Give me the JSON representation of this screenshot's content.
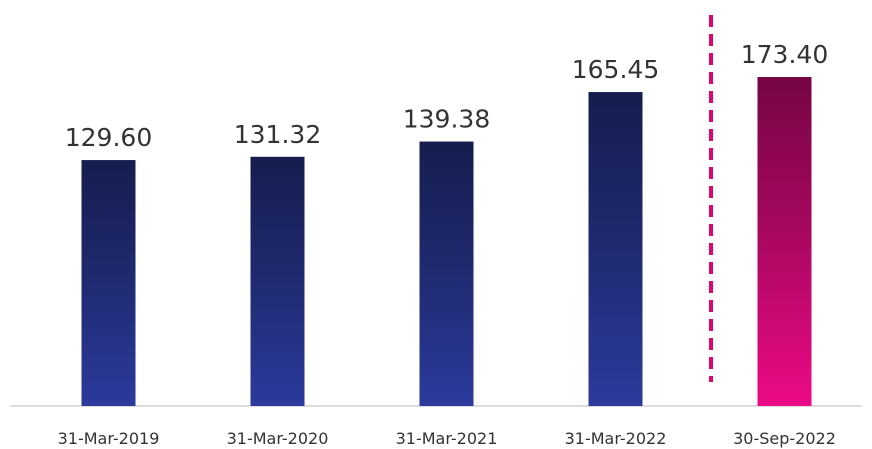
{
  "chart_data": {
    "type": "bar",
    "categories": [
      "31-Mar-2019",
      "31-Mar-2020",
      "31-Mar-2021",
      "31-Mar-2022",
      "30-Sep-2022"
    ],
    "values": [
      129.6,
      131.32,
      139.38,
      165.45,
      173.4
    ],
    "value_labels": [
      "129.60",
      "131.32",
      "139.38",
      "165.45",
      "173.40"
    ],
    "colors": [
      "#2b3a9c",
      "#2b3a9c",
      "#2b3a9c",
      "#2b3a9c",
      "#ec0a86"
    ]
  }
}
